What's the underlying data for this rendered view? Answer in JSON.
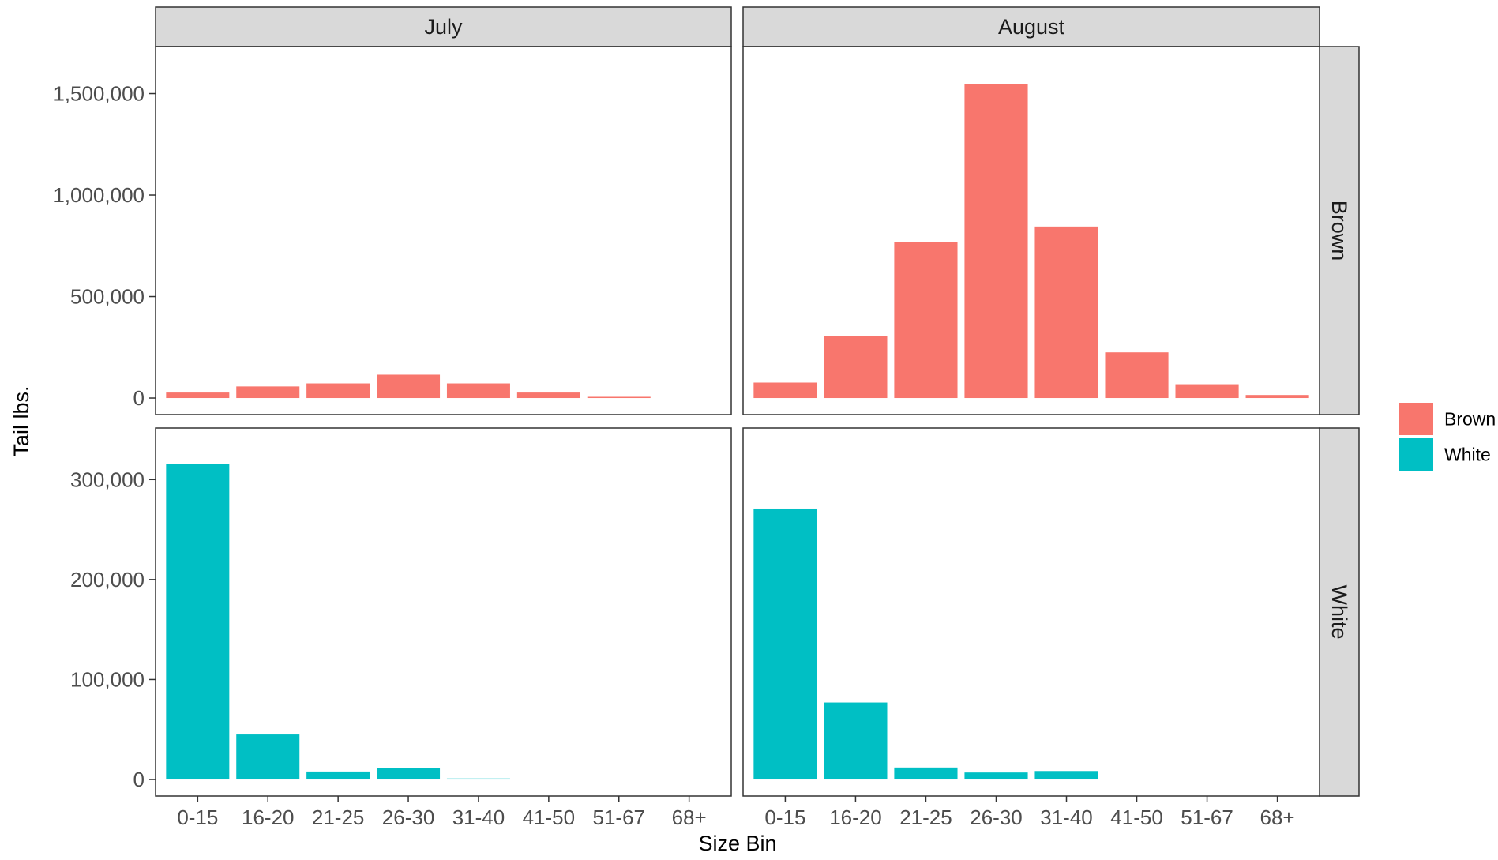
{
  "chart_data": {
    "type": "bar",
    "facet_columns": [
      "July",
      "August"
    ],
    "facet_rows": [
      "Brown",
      "White"
    ],
    "categories": [
      "0-15",
      "16-20",
      "21-25",
      "26-30",
      "31-40",
      "41-50",
      "51-67",
      "68+"
    ],
    "xlabel": "Size Bin",
    "ylabel": "Tail lbs.",
    "scales": {
      "Brown": {
        "ylim": [
          0,
          1650000
        ],
        "ticks": [
          0,
          500000,
          1000000,
          1500000
        ],
        "tick_labels": [
          "0",
          "500,000",
          "1,000,000",
          "1,500,000"
        ]
      },
      "White": {
        "ylim": [
          0,
          335000
        ],
        "ticks": [
          0,
          100000,
          200000,
          300000
        ],
        "tick_labels": [
          "0",
          "100,000",
          "200,000",
          "300,000"
        ]
      }
    },
    "panels": [
      {
        "column": "July",
        "row": "Brown",
        "values": [
          27000,
          57000,
          72000,
          115000,
          72000,
          27000,
          6000,
          0
        ]
      },
      {
        "column": "August",
        "row": "Brown",
        "values": [
          76000,
          305000,
          770000,
          1545000,
          845000,
          225000,
          68000,
          15000
        ]
      },
      {
        "column": "July",
        "row": "White",
        "values": [
          316000,
          45000,
          8000,
          11500,
          1000,
          0,
          0,
          0
        ]
      },
      {
        "column": "August",
        "row": "White",
        "values": [
          271000,
          77000,
          12000,
          7000,
          8500,
          0,
          0,
          0
        ]
      }
    ],
    "legend": {
      "position": "right",
      "items": [
        {
          "label": "Brown",
          "color": "#F8766D"
        },
        {
          "label": "White",
          "color": "#00BFC4"
        }
      ]
    },
    "colors": {
      "Brown": "#F8766D",
      "White": "#00BFC4",
      "strip_background": "#D9D9D9",
      "panel_border": "#333333"
    },
    "grid": false
  }
}
